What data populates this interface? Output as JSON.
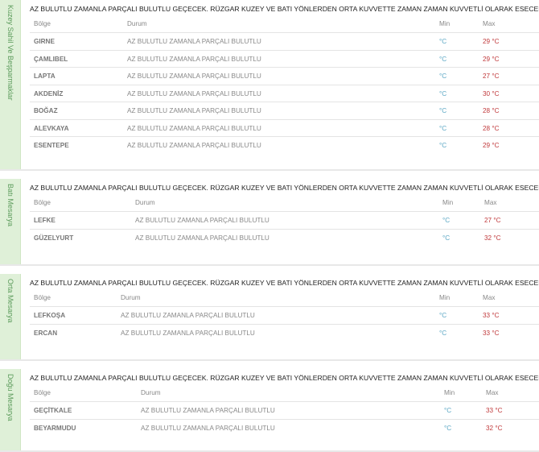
{
  "common_desc": "AZ BULUTLU ZAMANLA PARÇALI BULUTLU GEÇECEK. RÜZGAR KUZEY VE BATI YÖNLERDEN ORTA KUVVETTE ZAMAN ZAMAN KUVVETLİ OLARAK ESECEK.",
  "headers": {
    "region": "Bölge",
    "status": "Durum",
    "min": "Min",
    "max": "Max"
  },
  "colors": {
    "min": "#5ba7c4",
    "max": "#c0393b",
    "sidebar": "#dff0d8"
  },
  "sections": [
    {
      "title": "Kuzey Sahil Ve Beşparmaklar",
      "desc": "AZ BULUTLU ZAMANLA PARÇALI BULUTLU GEÇECEK. RÜZGAR KUZEY VE BATI YÖNLERDEN ORTA KUVVETTE ZAMAN ZAMAN KUVVETLİ OLARAK ESECEK.",
      "rows": [
        {
          "name": "GIRNE",
          "status": "AZ BULUTLU ZAMANLA PARÇALI BULUTLU",
          "min": "°C",
          "max": "29 °C"
        },
        {
          "name": "ÇAMLIBEL",
          "status": "AZ BULUTLU ZAMANLA PARÇALI BULUTLU",
          "min": "°C",
          "max": "29 °C"
        },
        {
          "name": "LAPTA",
          "status": "AZ BULUTLU ZAMANLA PARÇALI BULUTLU",
          "min": "°C",
          "max": "27 °C"
        },
        {
          "name": "AKDENİZ",
          "status": "AZ BULUTLU ZAMANLA PARÇALI BULUTLU",
          "min": "°C",
          "max": "30 °C"
        },
        {
          "name": "BOĞAZ",
          "status": "AZ BULUTLU ZAMANLA PARÇALI BULUTLU",
          "min": "°C",
          "max": "28 °C"
        },
        {
          "name": "ALEVKAYA",
          "status": "AZ BULUTLU ZAMANLA PARÇALI BULUTLU",
          "min": "°C",
          "max": "28 °C"
        },
        {
          "name": "ESENTEPE",
          "status": "AZ BULUTLU ZAMANLA PARÇALI BULUTLU",
          "min": "°C",
          "max": "29 °C"
        }
      ]
    },
    {
      "title": "Batı Mesarya",
      "desc": "AZ BULUTLU ZAMANLA PARÇALI BULUTLU GEÇECEK. RÜZGAR KUZEY VE BATI YÖNLERDEN ORTA KUVVETTE ZAMAN ZAMAN KUVVETLİ OLARAK ESECEK.",
      "rows": [
        {
          "name": "LEFKE",
          "status": "AZ BULUTLU ZAMANLA PARÇALI BULUTLU",
          "min": "°C",
          "max": "27 °C"
        },
        {
          "name": "GÜZELYURT",
          "status": "AZ BULUTLU ZAMANLA PARÇALI BULUTLU",
          "min": "°C",
          "max": "32 °C"
        }
      ]
    },
    {
      "title": "Orta Mesarya",
      "desc": "AZ BULUTLU ZAMANLA PARÇALI BULUTLU GEÇECEK. RÜZGAR KUZEY VE BATI YÖNLERDEN ORTA KUVVETTE ZAMAN ZAMAN KUVVETLİ OLARAK ESECEK.",
      "rows": [
        {
          "name": "LEFKOŞA",
          "status": "AZ BULUTLU ZAMANLA PARÇALI BULUTLU",
          "min": "°C",
          "max": "33 °C"
        },
        {
          "name": "ERCAN",
          "status": "AZ BULUTLU ZAMANLA PARÇALI BULUTLU",
          "min": "°C",
          "max": "33 °C"
        }
      ]
    },
    {
      "title": "Doğu Mesarya",
      "desc": "AZ BULUTLU ZAMANLA PARÇALI BULUTLU GEÇECEK. RÜZGAR KUZEY VE BATI YÖNLERDEN ORTA KUVVETTE ZAMAN ZAMAN KUVVETLİ OLARAK ESECEK.",
      "rows": [
        {
          "name": "GEÇİTKALE",
          "status": "AZ BULUTLU ZAMANLA PARÇALI BULUTLU",
          "min": "°C",
          "max": "33 °C"
        },
        {
          "name": "BEYARMUDU",
          "status": "AZ BULUTLU ZAMANLA PARÇALI BULUTLU",
          "min": "°C",
          "max": "32 °C"
        }
      ]
    }
  ]
}
